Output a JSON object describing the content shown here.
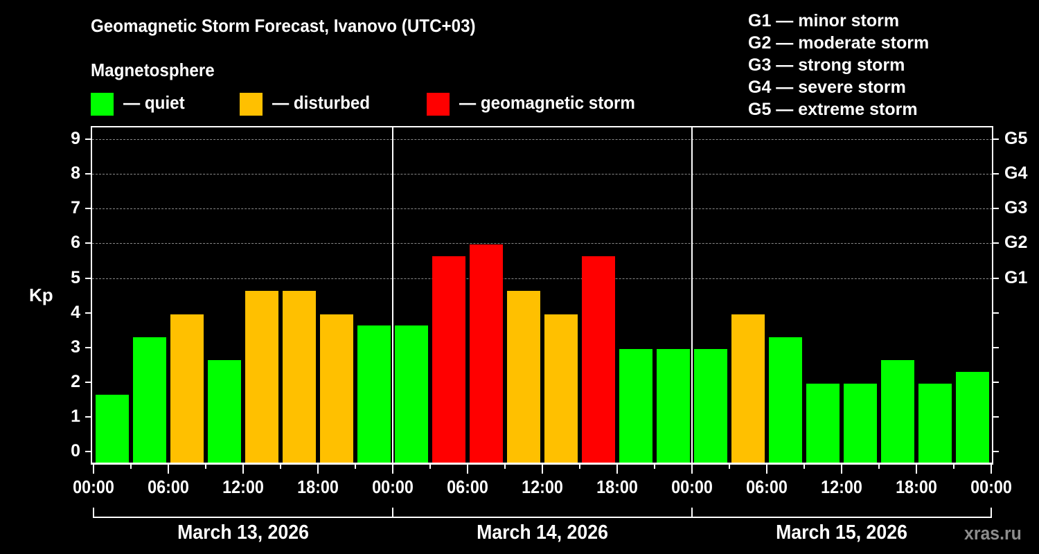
{
  "header": {
    "title": "Geomagnetic Storm Forecast, Ivanovo (UTC+03)",
    "subtitle": "Magnetosphere"
  },
  "legend": [
    {
      "label": "— quiet",
      "color": "#00ff00"
    },
    {
      "label": "— disturbed",
      "color": "#ffc000"
    },
    {
      "label": "— geomagnetic storm",
      "color": "#ff0000"
    }
  ],
  "g_legend": [
    "G1 — minor storm",
    "G2 — moderate storm",
    "G3 — strong storm",
    "G4 — severe storm",
    "G5 — extreme storm"
  ],
  "axes": {
    "ylabel": "Kp",
    "yticks": [
      "0",
      "1",
      "2",
      "3",
      "4",
      "5",
      "6",
      "7",
      "8",
      "9"
    ],
    "g_ticks": [
      {
        "label": "G1",
        "value": 5
      },
      {
        "label": "G2",
        "value": 6
      },
      {
        "label": "G3",
        "value": 7
      },
      {
        "label": "G4",
        "value": 8
      },
      {
        "label": "G5",
        "value": 9
      }
    ],
    "xticks": [
      "00:00",
      "06:00",
      "12:00",
      "18:00",
      "00:00",
      "06:00",
      "12:00",
      "18:00",
      "00:00",
      "06:00",
      "12:00",
      "18:00",
      "00:00"
    ],
    "dates": [
      "March 13, 2026",
      "March 14, 2026",
      "March 15, 2026"
    ]
  },
  "watermark": "xras.ru",
  "chart_data": {
    "type": "bar",
    "title": "Geomagnetic Storm Forecast, Ivanovo (UTC+03)",
    "subtitle": "Magnetosphere",
    "xlabel": "",
    "ylabel": "Kp",
    "ylim": [
      0,
      9
    ],
    "grid": "horizontal dashed at Kp 5–9 (G1–G5)",
    "legend_position": "top",
    "categories": [
      "Mar 13 00:00",
      "Mar 13 03:00",
      "Mar 13 06:00",
      "Mar 13 09:00",
      "Mar 13 12:00",
      "Mar 13 15:00",
      "Mar 13 18:00",
      "Mar 13 21:00",
      "Mar 14 00:00",
      "Mar 14 03:00",
      "Mar 14 06:00",
      "Mar 14 09:00",
      "Mar 14 12:00",
      "Mar 14 15:00",
      "Mar 14 18:00",
      "Mar 14 21:00",
      "Mar 15 00:00",
      "Mar 15 03:00",
      "Mar 15 06:00",
      "Mar 15 09:00",
      "Mar 15 12:00",
      "Mar 15 15:00",
      "Mar 15 18:00",
      "Mar 15 21:00"
    ],
    "values": [
      1.67,
      3.33,
      4.0,
      2.67,
      4.67,
      4.67,
      4.0,
      3.67,
      3.67,
      5.67,
      6.0,
      4.67,
      4.0,
      5.67,
      3.0,
      3.0,
      3.0,
      4.0,
      3.33,
      2.0,
      2.0,
      2.67,
      2.0,
      2.33
    ],
    "status": [
      "quiet",
      "quiet",
      "disturbed",
      "quiet",
      "disturbed",
      "disturbed",
      "disturbed",
      "quiet",
      "quiet",
      "storm",
      "storm",
      "disturbed",
      "disturbed",
      "storm",
      "quiet",
      "quiet",
      "quiet",
      "disturbed",
      "quiet",
      "quiet",
      "quiet",
      "quiet",
      "quiet",
      "quiet"
    ],
    "status_colors": {
      "quiet": "#00ff00",
      "disturbed": "#ffc000",
      "storm": "#ff0000"
    },
    "secondary_axis": {
      "G1": 5,
      "G2": 6,
      "G3": 7,
      "G4": 8,
      "G5": 9
    }
  }
}
